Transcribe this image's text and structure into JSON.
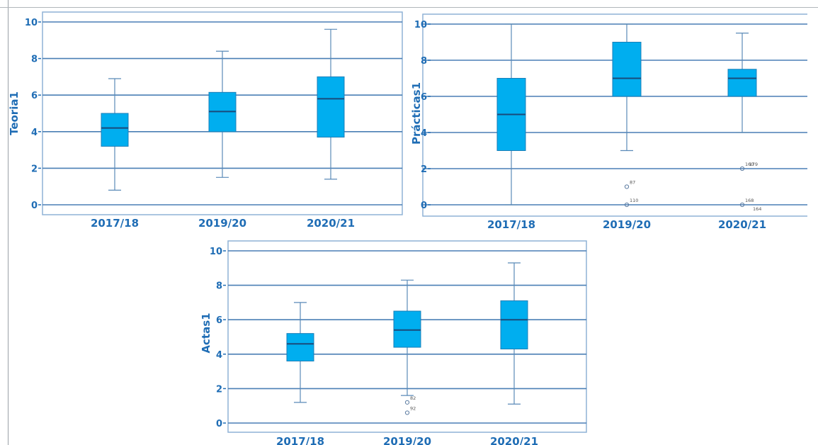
{
  "colors": {
    "box_fill": "#00aeef",
    "box_edge": "#1a7fb8",
    "grid": "#4a7fb5",
    "frame": "#8fb2d6",
    "whisker": "#5a8ab8",
    "text": "#1f6db5"
  },
  "chart_data": [
    {
      "type": "boxplot",
      "ylabel": "Teoria1",
      "ylim": [
        0,
        10
      ],
      "yticks": [
        "0",
        "2",
        "4",
        "6",
        "8",
        "10"
      ],
      "categories": [
        "2017/18",
        "2019/20",
        "2020/21"
      ],
      "boxes": [
        {
          "min": 0.8,
          "q1": 3.2,
          "median": 4.2,
          "q3": 5.0,
          "max": 6.9,
          "outliers": []
        },
        {
          "min": 1.5,
          "q1": 4.0,
          "median": 5.1,
          "q3": 6.15,
          "max": 8.4,
          "outliers": []
        },
        {
          "min": 1.4,
          "q1": 3.7,
          "median": 5.8,
          "q3": 7.0,
          "max": 9.6,
          "outliers": []
        }
      ]
    },
    {
      "type": "boxplot",
      "ylabel": "Prácticas1",
      "ylim": [
        0,
        10
      ],
      "yticks": [
        "0",
        "2",
        "4",
        "6",
        "8",
        "10"
      ],
      "categories": [
        "2017/18",
        "2019/20",
        "2020/21"
      ],
      "boxes": [
        {
          "min": 0.0,
          "q1": 3.0,
          "median": 5.0,
          "q3": 7.0,
          "max": 10.0,
          "outliers": []
        },
        {
          "min": 3.0,
          "q1": 6.0,
          "median": 7.0,
          "q3": 9.0,
          "max": 10.0,
          "outliers": [
            {
              "y": 1.0,
              "label": "87"
            },
            {
              "y": 0.0,
              "label": "110"
            }
          ]
        },
        {
          "min": 4.0,
          "q1": 6.0,
          "median": 7.0,
          "q3": 7.5,
          "max": 9.5,
          "outliers": [
            {
              "y": 2.0,
              "label": "160"
            },
            {
              "y": 2.0,
              "label": "179"
            },
            {
              "y": 0.0,
              "label": "168"
            },
            {
              "y": 0.0,
              "label": "164"
            }
          ]
        }
      ]
    },
    {
      "type": "boxplot",
      "ylabel": "Actas1",
      "ylim": [
        0,
        10
      ],
      "yticks": [
        "0",
        "2",
        "4",
        "6",
        "8",
        "10"
      ],
      "categories": [
        "2017/18",
        "2019/20",
        "2020/21"
      ],
      "boxes": [
        {
          "min": 1.2,
          "q1": 3.6,
          "median": 4.6,
          "q3": 5.2,
          "max": 7.0,
          "outliers": []
        },
        {
          "min": 1.6,
          "q1": 4.4,
          "median": 5.4,
          "q3": 6.5,
          "max": 8.3,
          "outliers": [
            {
              "y": 1.2,
              "label": "82"
            },
            {
              "y": 0.6,
              "label": "92"
            }
          ]
        },
        {
          "min": 1.1,
          "q1": 4.3,
          "median": 6.0,
          "q3": 7.1,
          "max": 9.3,
          "outliers": []
        }
      ]
    }
  ]
}
